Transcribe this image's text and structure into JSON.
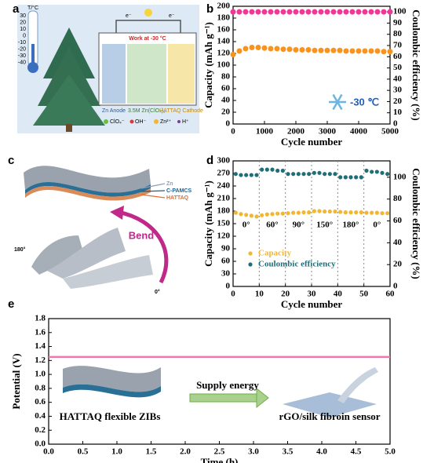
{
  "panel_labels": [
    "a",
    "b",
    "c",
    "d",
    "e"
  ],
  "panel_a": {
    "thermometer_unit": "T/°C",
    "thermometer_ticks": [
      "30",
      "20",
      "10",
      "0",
      "-10",
      "-20",
      "-30",
      "-40"
    ],
    "electron_left": "e⁻",
    "electron_right": "e⁻",
    "work_label": "Work at -30 °C",
    "anode": "Zn Anode",
    "electrolyte": "3.5M Zn(ClO₄)₂",
    "cathode": "HATTAQ Cathode",
    "legend": [
      "ClO₄⁻",
      "OH⁻",
      "Zn²⁺",
      "H⁺"
    ]
  },
  "panel_c": {
    "layers": [
      "Zn",
      "C-PAMCS",
      "HATTAQ"
    ],
    "bend_label": "Bend",
    "angle_start": "180°",
    "angle_end": "0°"
  },
  "chart_data": [
    {
      "type": "scatter",
      "xlabel": "Cycle number",
      "ylabel": "Capacity (mAh g⁻¹)",
      "y2label": "Coulombic efficiency (%)",
      "annotation": "-30 ℃",
      "xlim": [
        0,
        5000
      ],
      "xticks": [
        0,
        1000,
        2000,
        3000,
        4000,
        5000
      ],
      "ylim": [
        0,
        200
      ],
      "yticks": [
        0,
        20,
        40,
        60,
        80,
        100,
        120,
        140,
        160,
        180,
        200
      ],
      "y2lim": [
        0,
        105
      ],
      "y2ticks": [
        0,
        10,
        20,
        30,
        40,
        50,
        60,
        70,
        80,
        90,
        100
      ],
      "x": [
        0,
        200,
        400,
        600,
        800,
        1000,
        1200,
        1400,
        1600,
        1800,
        2000,
        2200,
        2400,
        2600,
        2800,
        3000,
        3200,
        3400,
        3600,
        3800,
        4000,
        4200,
        4400,
        4600,
        4800,
        5000
      ],
      "series": [
        {
          "color": "#f7941d",
          "values": [
            118,
            124,
            128,
            130,
            130,
            129,
            128,
            128,
            127,
            127,
            126,
            126,
            126,
            125,
            125,
            125,
            125,
            125,
            124,
            124,
            124,
            124,
            124,
            124,
            123,
            123
          ]
        },
        {
          "color": "#ec3a96",
          "axis": "y2",
          "values": [
            100,
            100,
            100,
            100,
            100,
            100,
            100,
            100,
            100,
            100,
            100,
            100,
            100,
            100,
            100,
            100,
            100,
            100,
            100,
            100,
            100,
            100,
            100,
            100,
            100,
            100
          ]
        }
      ]
    },
    {
      "type": "scatter",
      "xlabel": "Cycle number",
      "ylabel": "Capacity (mAh g⁻¹)",
      "y2label": "Coulombic efficiency (%)",
      "xlim": [
        0,
        60
      ],
      "xticks": [
        0,
        10,
        20,
        30,
        40,
        50,
        60
      ],
      "ylim": [
        0,
        300
      ],
      "yticks": [
        0,
        30,
        60,
        90,
        120,
        150,
        180,
        210,
        240,
        270,
        300
      ],
      "y2lim": [
        0,
        115
      ],
      "y2ticks": [
        0,
        20,
        40,
        60,
        80,
        100
      ],
      "dividers": [
        10,
        20,
        30,
        40,
        50
      ],
      "segment_labels": [
        "0°",
        "60°",
        "90°",
        "150°",
        "180°",
        "0°"
      ],
      "x": [
        1,
        3,
        5,
        7,
        9,
        11,
        13,
        15,
        17,
        19,
        21,
        23,
        25,
        27,
        29,
        31,
        33,
        35,
        37,
        39,
        41,
        43,
        45,
        47,
        49,
        51,
        53,
        55,
        57,
        59
      ],
      "series": [
        {
          "name": "Capacity",
          "color": "#f2b632",
          "values": [
            176,
            173,
            171,
            169,
            167,
            170,
            172,
            173,
            174,
            174,
            175,
            176,
            176,
            177,
            177,
            180,
            180,
            179,
            179,
            179,
            178,
            177,
            177,
            177,
            177,
            176,
            176,
            176,
            175,
            175
          ]
        },
        {
          "name": "Coulombic efficiency",
          "color": "#1f6f78",
          "axis": "y2",
          "values": [
            103,
            102,
            102,
            102,
            102,
            107,
            107,
            107,
            106,
            106,
            103,
            103,
            103,
            103,
            103,
            104,
            104,
            103,
            103,
            103,
            100,
            100,
            100,
            100,
            100,
            106,
            105,
            105,
            104,
            103
          ]
        }
      ]
    },
    {
      "type": "line",
      "xlabel": "Time (h)",
      "ylabel": "Potential (V)",
      "annotations": [
        "HATTAQ flexible ZIBs",
        "Supply energy",
        "rGO/silk fibroin sensor"
      ],
      "xlim": [
        0,
        5
      ],
      "xticks": [
        {
          "value": 0,
          "label": "0.0"
        },
        {
          "value": 0.5,
          "label": "0.5"
        },
        {
          "value": 1,
          "label": "1.0"
        },
        {
          "value": 1.5,
          "label": "1.5"
        },
        {
          "value": 2,
          "label": "2.0"
        },
        {
          "value": 2.5,
          "label": "2.5"
        },
        {
          "value": 3,
          "label": "3.0"
        },
        {
          "value": 3.5,
          "label": "3.5"
        },
        {
          "value": 4,
          "label": "4.0"
        },
        {
          "value": 4.5,
          "label": "4.5"
        },
        {
          "value": 5,
          "label": "5.0"
        }
      ],
      "ylim": [
        0,
        1.8
      ],
      "yticks": [
        {
          "value": 0,
          "label": "0.0"
        },
        0.2,
        0.4,
        0.6,
        0.8,
        {
          "value": 1,
          "label": "1.0"
        },
        1.2,
        1.4,
        1.6,
        1.8
      ],
      "x": [
        0,
        5
      ],
      "series": [
        {
          "color": "#f075b5",
          "values": [
            1.25,
            1.25
          ]
        }
      ]
    }
  ]
}
